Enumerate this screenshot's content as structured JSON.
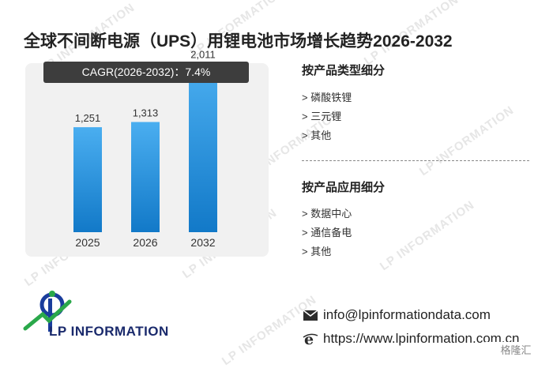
{
  "title": "全球不间断电源（UPS）用锂电池市场增长趋势2026-2032",
  "cagr_label": "CAGR(2026-2032)：7.4%",
  "chart_data": {
    "type": "bar",
    "categories": [
      "2025",
      "2026",
      "2032"
    ],
    "values": [
      1251,
      1313,
      2011
    ],
    "value_labels": [
      "1,251",
      "1,313",
      "2,011"
    ],
    "ylim": [
      0,
      2400
    ],
    "bar_color": "#1f8fe0"
  },
  "segments": {
    "by_type": {
      "title": "按产品类型细分",
      "items": [
        "磷酸铁锂",
        "三元锂",
        "其他"
      ]
    },
    "by_application": {
      "title": "按产品应用细分",
      "items": [
        "数据中心",
        "通信备电",
        "其他"
      ]
    }
  },
  "logo": {
    "text": "LP INFORMATION"
  },
  "contact": {
    "email": "info@lpinformationdata.com",
    "website": "https://www.lpinformation.com.cn"
  },
  "footer_badge": "格隆汇"
}
